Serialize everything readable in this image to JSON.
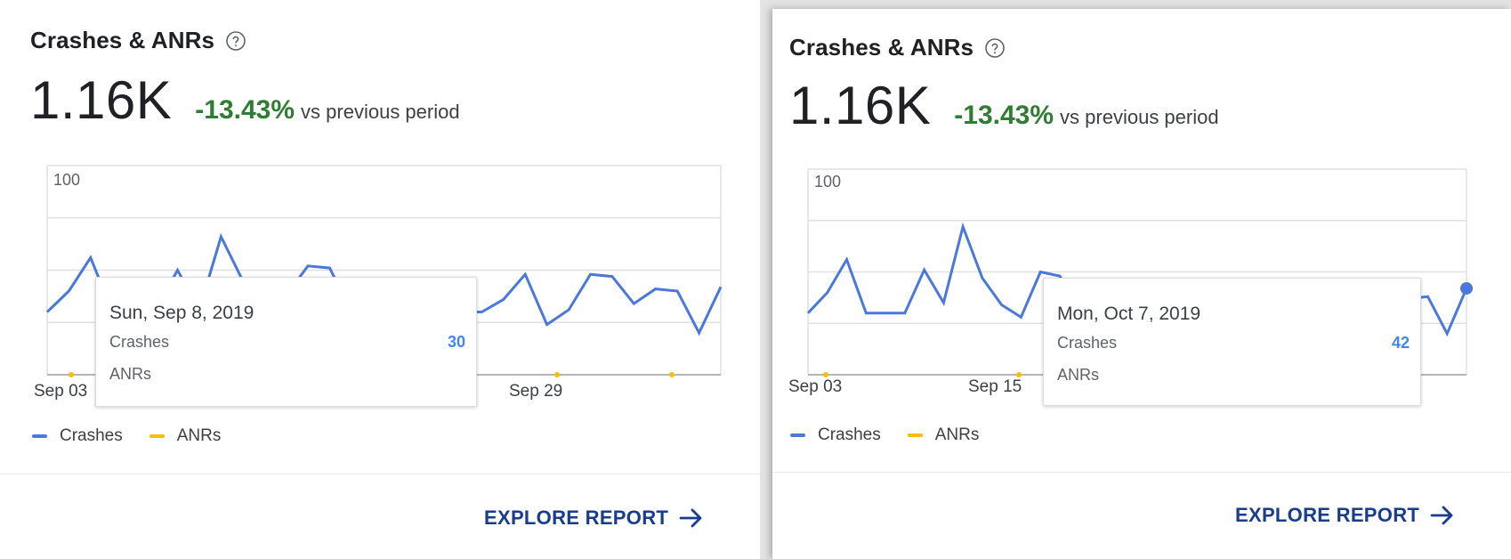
{
  "colors": {
    "crashes": "#4a78dc",
    "anrs": "#fbbc04",
    "delta": "#2e7d32",
    "link": "#1a3c8f",
    "tooltip_value": "#4285f4"
  },
  "cards": [
    {
      "title": "Crashes & ANRs",
      "value": "1.16K",
      "delta": "-13.43%",
      "delta_suffix": "vs previous period",
      "tooltip": {
        "date": "Sun, Sep 8, 2019",
        "rows": [
          {
            "label": "Crashes",
            "value": "30"
          },
          {
            "label": "ANRs",
            "value": ""
          }
        ]
      },
      "legend": [
        "Crashes",
        "ANRs"
      ],
      "action": "EXPLORE REPORT",
      "help_icon": "help-circle-icon",
      "action_icon": "arrow-right-icon"
    },
    {
      "title": "Crashes & ANRs",
      "value": "1.16K",
      "delta": "-13.43%",
      "delta_suffix": "vs previous period",
      "tooltip": {
        "date": "Mon, Oct 7, 2019",
        "rows": [
          {
            "label": "Crashes",
            "value": "42"
          },
          {
            "label": "ANRs",
            "value": ""
          }
        ]
      },
      "legend": [
        "Crashes",
        "ANRs"
      ],
      "action": "EXPLORE REPORT",
      "help_icon": "help-circle-icon",
      "action_icon": "arrow-right-icon"
    }
  ],
  "chart_data": [
    {
      "type": "line",
      "y_tick_label": "100",
      "ylim": [
        0,
        100
      ],
      "x_tick_labels": [
        "Sep 03",
        "Sep 29"
      ],
      "grid": true,
      "legend_placement": "bottom-left",
      "highlight_index": 5,
      "series": [
        {
          "name": "Crashes",
          "values": [
            30,
            40,
            56,
            30,
            30,
            31,
            50,
            31,
            66,
            45,
            38,
            38,
            52,
            51,
            30,
            30,
            30,
            30,
            30,
            30,
            30,
            36,
            48,
            24,
            31,
            48,
            47,
            34,
            41,
            40,
            20,
            42
          ]
        },
        {
          "name": "ANRs",
          "values": [
            0,
            0,
            0,
            0,
            0,
            0,
            0,
            0,
            0,
            0,
            0,
            0,
            0,
            0,
            0,
            0,
            0,
            0,
            0,
            0,
            0,
            0,
            0,
            0,
            0,
            0,
            0,
            0,
            0,
            0,
            0,
            0
          ]
        }
      ]
    },
    {
      "type": "line",
      "y_tick_label": "100",
      "ylim": [
        0,
        100
      ],
      "x_tick_labels": [
        "Sep 03",
        "Sep 15"
      ],
      "grid": true,
      "legend_placement": "bottom-left",
      "highlight_index": 34,
      "series": [
        {
          "name": "Crashes",
          "values": [
            30,
            40,
            56,
            30,
            30,
            30,
            51,
            35,
            72,
            47,
            34,
            28,
            50,
            48,
            33,
            32,
            32,
            32,
            32,
            32,
            32,
            32,
            32,
            32,
            32,
            32,
            32,
            32,
            32,
            44,
            44,
            37,
            38,
            20,
            42
          ]
        },
        {
          "name": "ANRs",
          "values": [
            0,
            0,
            0,
            0,
            0,
            0,
            0,
            0,
            0,
            0,
            0,
            0,
            0,
            0,
            0,
            0,
            0,
            0,
            0,
            0,
            0,
            0,
            0,
            0,
            0,
            0,
            0,
            0,
            0,
            0,
            0,
            0,
            0,
            0,
            0
          ]
        }
      ]
    }
  ]
}
